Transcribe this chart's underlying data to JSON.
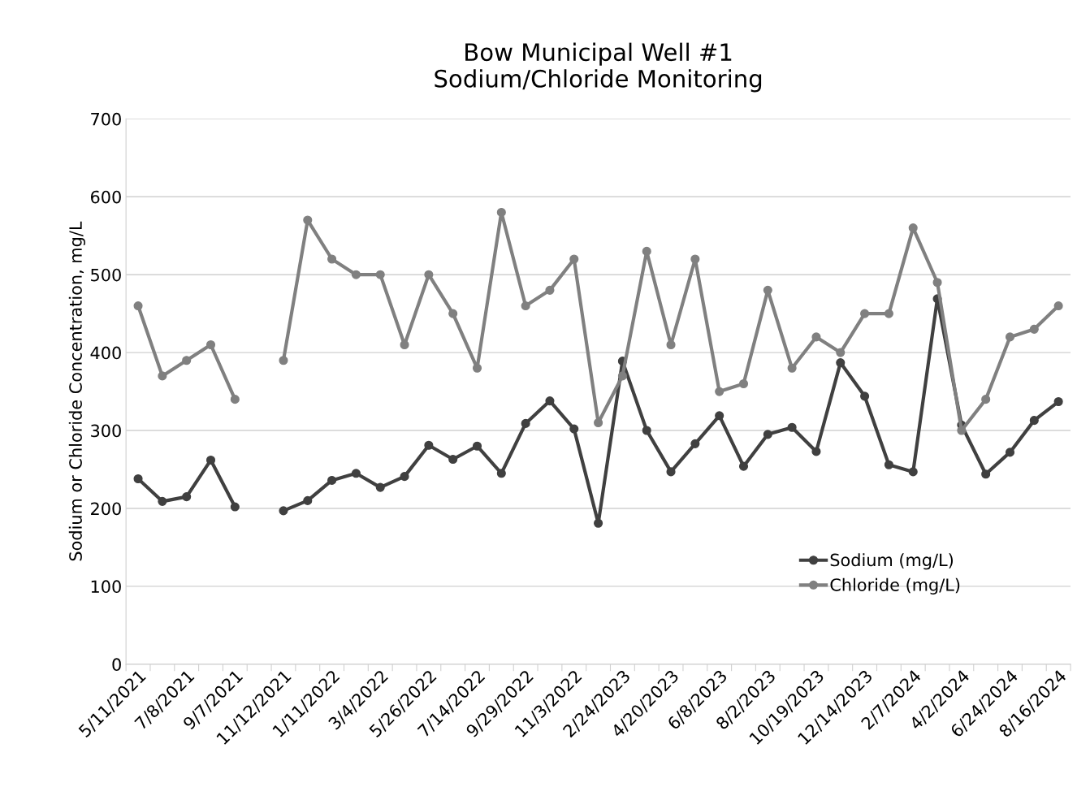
{
  "chart_data": {
    "type": "line",
    "title": "Bow Municipal Well #1\nSodium/Chloride Monitoring",
    "ylabel": "Sodium or Chloride Concentration, mg/L",
    "categories": [
      "5/11/2021",
      null,
      "7/8/2021",
      null,
      "9/7/2021",
      null,
      "11/12/2021",
      null,
      "1/11/2022",
      null,
      "3/4/2022",
      null,
      "5/26/2022",
      null,
      "7/14/2022",
      null,
      "9/29/2022",
      null,
      "11/3/2022",
      null,
      "2/24/2023",
      null,
      "4/20/2023",
      null,
      "6/8/2023",
      null,
      "8/2/2023",
      null,
      "10/19/2023",
      null,
      "12/14/2023",
      null,
      "2/7/2024",
      null,
      "4/2/2024",
      null,
      "6/24/2024",
      null,
      "8/16/2024"
    ],
    "series": [
      {
        "name": "Sodium (mg/L)",
        "color": "#404040",
        "values": [
          238,
          209,
          215,
          262,
          202,
          null,
          197,
          210,
          236,
          245,
          227,
          241,
          281,
          263,
          280,
          245,
          309,
          338,
          302,
          181,
          389,
          300,
          247,
          283,
          319,
          254,
          295,
          304,
          273,
          387,
          344,
          256,
          247,
          469,
          307,
          244,
          272,
          313,
          337
        ]
      },
      {
        "name": "Chloride (mg/L)",
        "color": "#808080",
        "values": [
          460,
          370,
          390,
          410,
          340,
          null,
          390,
          570,
          520,
          500,
          500,
          410,
          500,
          450,
          380,
          580,
          460,
          480,
          520,
          310,
          370,
          530,
          410,
          520,
          350,
          360,
          480,
          380,
          420,
          400,
          450,
          450,
          560,
          490,
          300,
          340,
          420,
          430,
          460
        ]
      }
    ],
    "ylim": [
      0,
      700
    ],
    "yticks": [
      0,
      100,
      200,
      300,
      400,
      500,
      600,
      700
    ],
    "grid": "y",
    "legend": "bottom right",
    "marker": "circle",
    "line_style": "solid"
  }
}
